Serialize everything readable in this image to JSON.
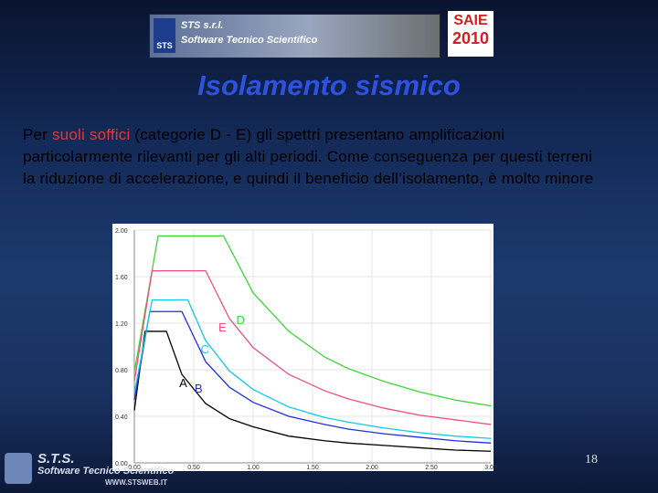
{
  "header": {
    "logo": "STS",
    "company": "STS s.r.l.",
    "tagline": "Software Tecnico Scientifico",
    "fair": "SAIE",
    "fair_year": "2010"
  },
  "title": "Isolamento sismico",
  "body": {
    "pre": "Per ",
    "highlight": "suoli soffici",
    "rest": " (categorie D - E) gli spettri presentano amplificazioni particolarmente rilevanti per gli alti periodi. Come conseguenza per questi terreni la riduzione di accelerazione, e quindi il beneficio dell’isolamento, è molto minore"
  },
  "chart_data": {
    "type": "line",
    "xlim": [
      0,
      3
    ],
    "ylim": [
      0,
      2
    ],
    "xticks": [
      {
        "value": 0,
        "label": "0.00"
      },
      {
        "value": 0.5,
        "label": "0.50"
      },
      {
        "value": 1,
        "label": "1.00"
      },
      {
        "value": 1.5,
        "label": "1.50"
      },
      {
        "value": 2,
        "label": "2.00"
      },
      {
        "value": 2.5,
        "label": "2.50"
      },
      {
        "value": 3,
        "label": "3.00"
      }
    ],
    "yticks": [
      {
        "value": 0,
        "label": "0.00"
      },
      {
        "value": 0.4,
        "label": "0.40"
      },
      {
        "value": 0.8,
        "label": "0.80"
      },
      {
        "value": 1.2,
        "label": "1.20"
      },
      {
        "value": 1.6,
        "label": "1.60"
      },
      {
        "value": 2,
        "label": "2.00"
      }
    ],
    "series": [
      {
        "name": "A",
        "color": "#000000",
        "x": [
          0,
          0.09,
          0.27,
          0.4,
          0.6,
          0.8,
          1.0,
          1.3,
          1.6,
          1.8,
          2.1,
          2.4,
          2.7,
          3.0
        ],
        "values": [
          0.45,
          1.13,
          1.13,
          0.76,
          0.51,
          0.38,
          0.31,
          0.23,
          0.19,
          0.17,
          0.15,
          0.13,
          0.11,
          0.1
        ]
      },
      {
        "name": "B",
        "color": "#1f2fe0",
        "x": [
          0,
          0.13,
          0.4,
          0.6,
          0.8,
          1.0,
          1.3,
          1.6,
          1.8,
          2.1,
          2.4,
          2.7,
          3.0
        ],
        "values": [
          0.54,
          1.3,
          1.3,
          0.87,
          0.65,
          0.52,
          0.4,
          0.33,
          0.29,
          0.25,
          0.22,
          0.19,
          0.17
        ]
      },
      {
        "name": "C",
        "color": "#10c8e8",
        "x": [
          0,
          0.15,
          0.45,
          0.6,
          0.8,
          1.0,
          1.3,
          1.6,
          1.8,
          2.1,
          2.4,
          2.7,
          3.0
        ],
        "values": [
          0.6,
          1.4,
          1.4,
          1.05,
          0.79,
          0.63,
          0.48,
          0.39,
          0.35,
          0.3,
          0.26,
          0.23,
          0.21
        ]
      },
      {
        "name": "D",
        "color": "#3ad63a",
        "x": [
          0,
          0.2,
          0.75,
          1.0,
          1.3,
          1.6,
          1.8,
          2.1,
          2.4,
          2.7,
          3.0
        ],
        "values": [
          0.78,
          1.95,
          1.95,
          1.46,
          1.13,
          0.91,
          0.81,
          0.7,
          0.61,
          0.54,
          0.49
        ]
      },
      {
        "name": "E",
        "color": "#f0507a",
        "x": [
          0,
          0.15,
          0.6,
          0.8,
          1.0,
          1.3,
          1.6,
          1.8,
          2.1,
          2.4,
          2.7,
          3.0
        ],
        "values": [
          0.7,
          1.65,
          1.65,
          1.24,
          0.99,
          0.76,
          0.62,
          0.55,
          0.47,
          0.41,
          0.37,
          0.33
        ]
      }
    ]
  },
  "page_number": "18",
  "footer": {
    "company": "S.T.S.",
    "tagline": "Software Tecnico Scientifico",
    "website": "WWW.STSWEB.IT"
  }
}
